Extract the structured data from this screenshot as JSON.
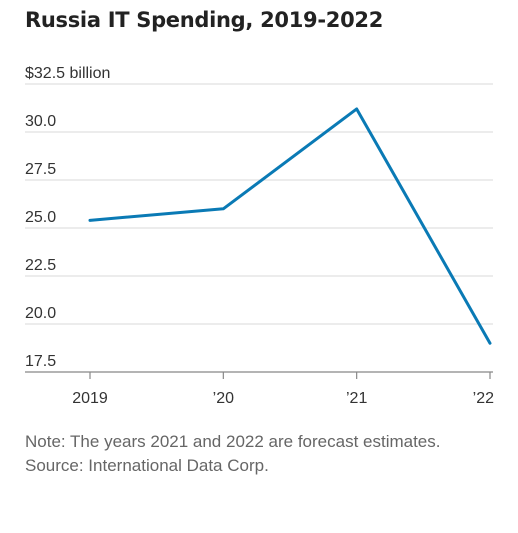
{
  "chart_data": {
    "type": "line",
    "title": "Russia IT Spending, 2019-2022",
    "categories": [
      "2019",
      "’20",
      "’21",
      "’22"
    ],
    "series": [
      {
        "values": [
          25.4,
          26.0,
          31.2,
          19.0
        ]
      }
    ],
    "y_ticks": [
      "$32.5 billion",
      "30.0",
      "27.5",
      "25.0",
      "22.5",
      "20.0",
      "17.5"
    ],
    "y_tick_values": [
      32.5,
      30.0,
      27.5,
      25.0,
      22.5,
      20.0,
      17.5
    ],
    "ylim": [
      17.5,
      32.5
    ],
    "grid": true,
    "line_color": "#0a7ab5",
    "grid_color": "#d9d9d9"
  },
  "notes": {
    "note": "Note: The years 2021 and 2022 are forecast estimates.",
    "source": "Source: International Data Corp."
  }
}
